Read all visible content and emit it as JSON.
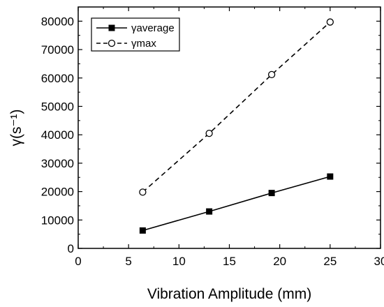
{
  "chart_data": {
    "type": "line",
    "xlabel": "Vibration Amplitude (mm)",
    "ylabel": "γ(s⁻¹)",
    "xlim": [
      0,
      30
    ],
    "ylim": [
      0,
      85000
    ],
    "xticks": [
      0,
      5,
      10,
      15,
      20,
      25,
      30
    ],
    "yticks": [
      0,
      10000,
      20000,
      30000,
      40000,
      50000,
      60000,
      70000,
      80000
    ],
    "grid": false,
    "legend_position": "top-left",
    "series": [
      {
        "name": "γaverage",
        "x": [
          6.4,
          13,
          19.2,
          25
        ],
        "y": [
          6300,
          13000,
          19500,
          25300
        ],
        "marker": "filled-square",
        "line": "solid",
        "color": "#000000"
      },
      {
        "name": "γmax",
        "x": [
          6.4,
          13,
          19.2,
          25
        ],
        "y": [
          19800,
          40500,
          61200,
          79700
        ],
        "marker": "open-circle",
        "line": "dashed",
        "color": "#000000"
      }
    ]
  }
}
